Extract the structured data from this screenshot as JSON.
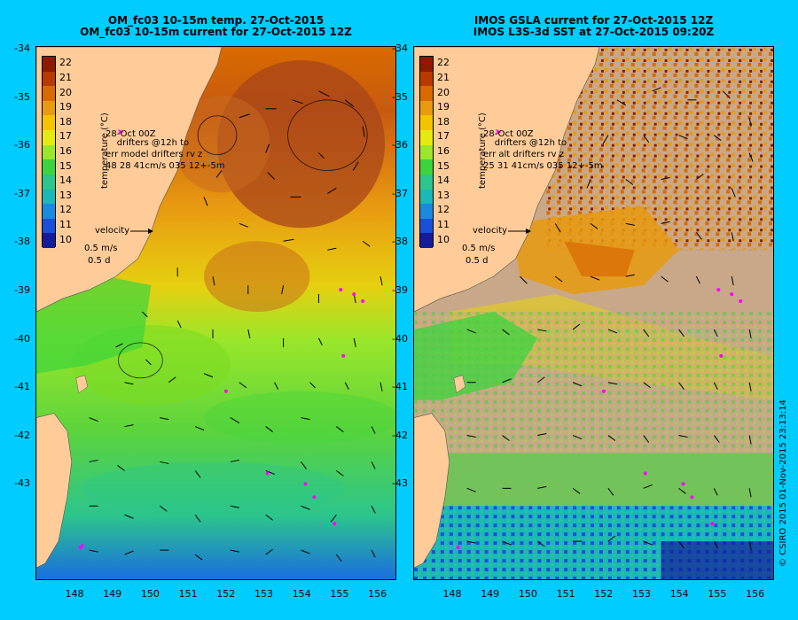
{
  "left_panel": {
    "title_line1": "OM_fc03 10-15m temp. 27-Oct-2015",
    "title_line2": "OM_fc03 10-15m current for 27-Oct-2015 12Z",
    "drifter_label": "drifters @12h to",
    "drifter_time": "28-Oct 00Z",
    "err_label": "err model drifters rv z",
    "err_values": "48 28 41cm/s 035 12+-5m",
    "velocity_label": "velocity",
    "velocity_speed": "0.5 m/s",
    "velocity_duration": "0.5 d"
  },
  "right_panel": {
    "title_line1": "IMOS GSLA current for 27-Oct-2015 12Z",
    "title_line2": "IMOS L3S-3d SST at 27-Oct-2015 09:20Z",
    "drifter_label": "drifters @12h to",
    "drifter_time": "28-Oct 00Z",
    "err_label": "err alt drifters rv z",
    "err_values": "25 31 41cm/s 035 12+-5m",
    "velocity_label": "velocity",
    "velocity_speed": "0.5 m/s",
    "velocity_duration": "0.5 d"
  },
  "colorbar": {
    "title": "temperature (°C)",
    "ticks": [
      "22",
      "21",
      "20",
      "19",
      "18",
      "17",
      "16",
      "15",
      "14",
      "13",
      "12",
      "11",
      "10"
    ],
    "colors": [
      "#8b1a00",
      "#b83a00",
      "#d96a00",
      "#e89a10",
      "#f5c400",
      "#e6ea10",
      "#9ae62a",
      "#3cd43c",
      "#2cc58c",
      "#1ab8b8",
      "#1a8ae0",
      "#1a50d8",
      "#141c9a"
    ]
  },
  "y_axis_labels": [
    "-34",
    "-35",
    "-36",
    "-37",
    "-38",
    "-39",
    "-40",
    "-41",
    "-42",
    "-43"
  ],
  "x_axis_labels": [
    "148",
    "149",
    "150",
    "151",
    "152",
    "153",
    "154",
    "155",
    "156"
  ],
  "credit": "© CSIRO 2015  01-Nov-2015 23:13:14",
  "colors": {
    "background": "#00ccff",
    "land_model": "#ffcc99",
    "land_obs_missing": "#c8a888",
    "drifter": "#ff00ff"
  }
}
